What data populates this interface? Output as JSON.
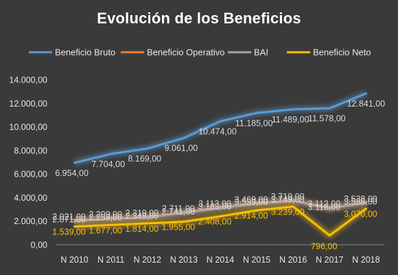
{
  "chart_data": {
    "type": "line",
    "title": "Evolución de los Beneficios",
    "categories": [
      "N 2010",
      "N 2011",
      "N 2012",
      "N 2013",
      "N 2014",
      "N 2015",
      "N 2016",
      "N 2017",
      "N 2018"
    ],
    "ylim": [
      0,
      14000
    ],
    "yticks": [
      "0,00",
      "2.000,00",
      "4.000,00",
      "6.000,00",
      "8.000,00",
      "10.000,00",
      "12.000,00",
      "14.000,00"
    ],
    "grid": false,
    "legend_position": "top",
    "series": [
      {
        "name": "Beneficio Bruto",
        "color": "#5b9bd5",
        "values": [
          6954,
          7704,
          8169,
          9061,
          10474,
          11185,
          11489,
          11578,
          12841
        ],
        "labels": [
          "6.954,00",
          "7.704,00",
          "8.169,00",
          "9.061,00",
          "10.474,00",
          "11.185,00",
          "11.489,00",
          "11.578,00",
          "12.841,00"
        ]
      },
      {
        "name": "Beneficio Operativo",
        "color": "#ed7d31",
        "values": [
          2071,
          2259,
          2349,
          2741,
          3183,
          3559,
          3749,
          3118,
          3588
        ],
        "labels": [
          "2.071,00",
          "2.259,00",
          "2.349,00",
          "2.741,00",
          "3.183,00",
          "3.559,00",
          "3.749,00",
          "3.118,00",
          "3.588,00"
        ]
      },
      {
        "name": "BAI",
        "color": "#a5a5a5",
        "values": [
          2021,
          2209,
          2319,
          2711,
          3113,
          3469,
          3719,
          3112,
          3538
        ],
        "labels": [
          "2.021,00",
          "2.209,00",
          "2.319,00",
          "2.711,00",
          "3.113,00",
          "3.469,00",
          "3.719,00",
          "3.112,00",
          "3.538,00"
        ]
      },
      {
        "name": "Beneficio Neto",
        "color": "#ffc000",
        "values": [
          1539,
          1677,
          1814,
          1955,
          2408,
          2914,
          3239,
          796,
          3070
        ],
        "labels": [
          "1.539,00",
          "1.677,00",
          "1.814,00",
          "1.955,00",
          "2.408,00",
          "2.914,00",
          "3.239,00",
          "796,00",
          "3.070,00"
        ]
      }
    ]
  }
}
